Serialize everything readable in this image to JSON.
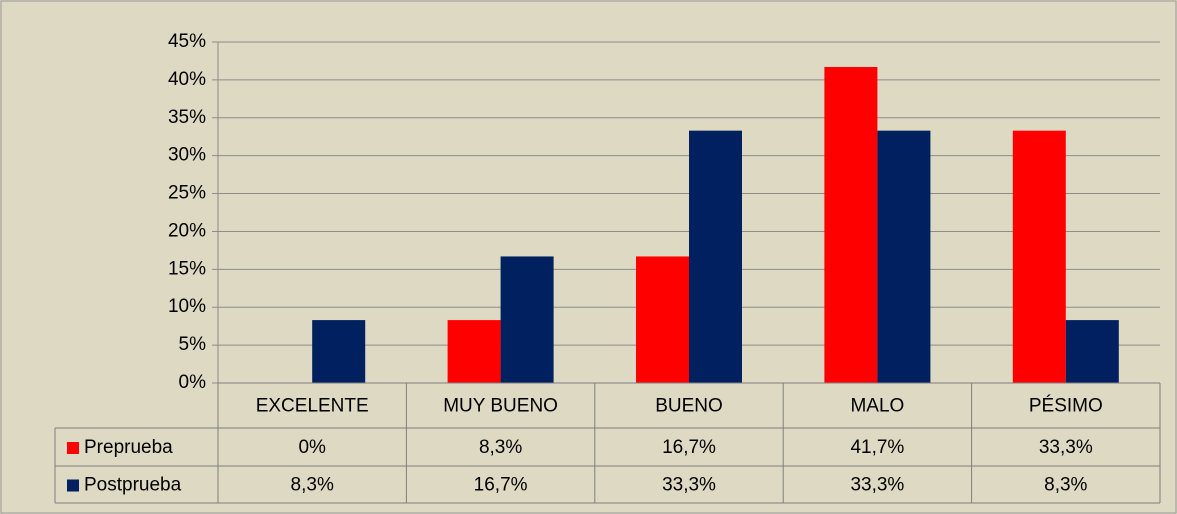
{
  "chart_data": {
    "type": "bar",
    "categories": [
      "EXCELENTE",
      "MUY BUENO",
      "BUENO",
      "MALO",
      "PÉSIMO"
    ],
    "series": [
      {
        "name": "Preprueba",
        "color": "#ff0000",
        "values": [
          0,
          8.3,
          16.7,
          41.7,
          33.3
        ],
        "value_labels": [
          "0%",
          "8,3%",
          "16,7%",
          "41,7%",
          "33,3%"
        ]
      },
      {
        "name": "Postprueba",
        "color": "#002060",
        "values": [
          8.3,
          16.7,
          33.3,
          33.3,
          8.3
        ],
        "value_labels": [
          "8,3%",
          "16,7%",
          "33,3%",
          "33,3%",
          "8,3%"
        ]
      }
    ],
    "ylim": [
      0,
      45
    ],
    "yticks": [
      {
        "value": 0,
        "label": "0%"
      },
      {
        "value": 5,
        "label": "5%"
      },
      {
        "value": 10,
        "label": "10%"
      },
      {
        "value": 15,
        "label": "15%"
      },
      {
        "value": 20,
        "label": "20%"
      },
      {
        "value": 25,
        "label": "25%"
      },
      {
        "value": 30,
        "label": "30%"
      },
      {
        "value": 35,
        "label": "35%"
      },
      {
        "value": 40,
        "label": "40%"
      },
      {
        "value": 45,
        "label": "45%"
      }
    ],
    "grid": true
  }
}
